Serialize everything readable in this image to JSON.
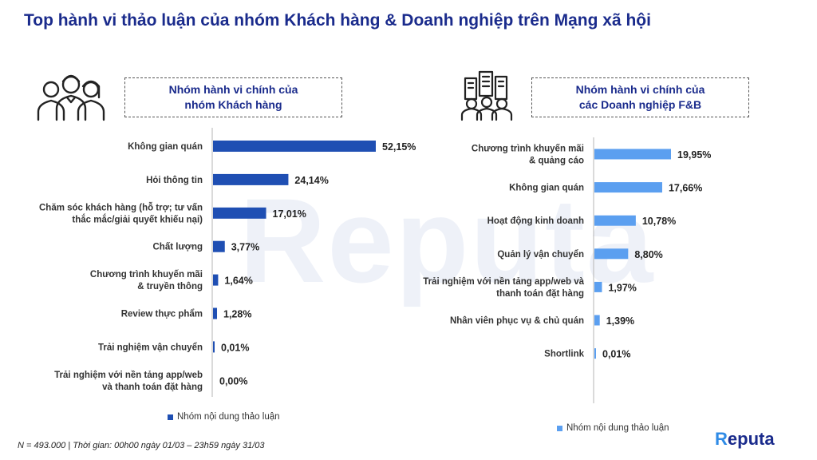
{
  "title": "Top hành vi thảo luận của nhóm Khách hàng & Doanh nghiệp trên Mạng xã hội",
  "watermark": "Reputa",
  "footnote": "N = 493.000 | Thời gian: 00h00 ngày 01/03 – 23h59 ngày 31/03",
  "brand": {
    "first": "R",
    "rest": "eputa"
  },
  "icons": {
    "left": "people-group-icon",
    "right": "business-people-buildings-icon"
  },
  "colors": {
    "left_bar": "#1f4fb3",
    "right_bar": "#5b9ff0",
    "title": "#1a2b8c"
  },
  "chart_data": [
    {
      "type": "bar",
      "orientation": "horizontal",
      "title": "Nhóm hành vi chính của\nnhóm Khách hàng",
      "categories": [
        "Không gian quán",
        "Hỏi thông tin",
        "Chăm sóc khách hàng (hỗ trợ; tư vấn\nthắc mắc/giải quyết khiếu nại)",
        "Chất lượng",
        "Chương trình khuyến mãi\n& truyền thông",
        "Review thực phẩm",
        "Trải nghiệm vận chuyển",
        "Trải nghiệm với nền tảng app/web\nvà thanh toán đặt hàng"
      ],
      "series": [
        {
          "name": "Nhóm nội dung thảo luận",
          "values": [
            52.15,
            24.14,
            17.01,
            3.77,
            1.64,
            1.28,
            0.01,
            0.0
          ],
          "labels": [
            "52,15%",
            "24,14%",
            "17,01%",
            "3,77%",
            "1,64%",
            "1,28%",
            "0,01%",
            "0,00%"
          ]
        }
      ],
      "xlim": [
        0,
        55
      ],
      "grid": false,
      "legend": "bottom"
    },
    {
      "type": "bar",
      "orientation": "horizontal",
      "title": "Nhóm hành vi chính của\ncác Doanh nghiệp F&B",
      "categories": [
        "Chương trình khuyến mãi\n& quảng cáo",
        "Không gian quán",
        "Hoạt động kinh doanh",
        "Quản lý vận chuyển",
        "Trải nghiệm với nền tảng app/web và\nthanh toán đặt hàng",
        "Nhân viên phục vụ & chủ quán",
        "Shortlink"
      ],
      "series": [
        {
          "name": "Nhóm nội dung thảo luận",
          "values": [
            19.95,
            17.66,
            10.78,
            8.8,
            1.97,
            1.39,
            0.01
          ],
          "labels": [
            "19,95%",
            "17,66%",
            "10,78%",
            "8,80%",
            "1,97%",
            "1,39%",
            "0,01%"
          ]
        }
      ],
      "xlim": [
        0,
        21
      ],
      "grid": false,
      "legend": "bottom"
    }
  ]
}
